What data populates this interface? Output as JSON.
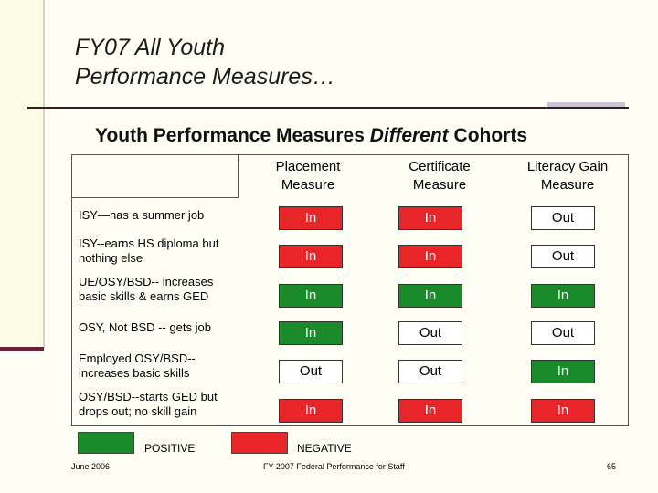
{
  "title": {
    "line1": "FY07 All Youth",
    "line2": "Performance Measures…"
  },
  "subtitle": {
    "before": "Youth Performance Measures ",
    "emphasis": "Different",
    "after": " Cohorts"
  },
  "columns": [
    {
      "line1": "Placement",
      "line2": "Measure"
    },
    {
      "line1": "Certificate",
      "line2": "Measure"
    },
    {
      "line1": "Literacy Gain",
      "line2": "Measure"
    }
  ],
  "rows": [
    {
      "label": "ISY—has a summer job",
      "cells": [
        {
          "text": "In",
          "status": "negative"
        },
        {
          "text": "In",
          "status": "negative"
        },
        {
          "text": "Out",
          "status": "none"
        }
      ]
    },
    {
      "label": "ISY--earns HS diploma but nothing else",
      "cells": [
        {
          "text": "In",
          "status": "negative"
        },
        {
          "text": "In",
          "status": "negative"
        },
        {
          "text": "Out",
          "status": "none"
        }
      ]
    },
    {
      "label": "UE/OSY/BSD-- increases basic skills & earns GED",
      "cells": [
        {
          "text": "In",
          "status": "positive"
        },
        {
          "text": "In",
          "status": "positive"
        },
        {
          "text": "In",
          "status": "positive"
        }
      ]
    },
    {
      "label": "OSY, Not BSD -- gets job",
      "cells": [
        {
          "text": "In",
          "status": "positive"
        },
        {
          "text": "Out",
          "status": "none"
        },
        {
          "text": "Out",
          "status": "none"
        }
      ]
    },
    {
      "label": "Employed OSY/BSD--increases basic skills",
      "cells": [
        {
          "text": "Out",
          "status": "none"
        },
        {
          "text": "Out",
          "status": "none"
        },
        {
          "text": "In",
          "status": "positive"
        }
      ]
    },
    {
      "label": "OSY/BSD--starts GED but drops out; no skill gain",
      "cells": [
        {
          "text": "In",
          "status": "negative"
        },
        {
          "text": "In",
          "status": "negative"
        },
        {
          "text": "In",
          "status": "negative"
        }
      ]
    }
  ],
  "legend": {
    "positive_label": "POSITIVE",
    "negative_label": "NEGATIVE"
  },
  "colors": {
    "positive": "#1a8a2a",
    "negative": "#e8262a",
    "none": "#ffffff"
  },
  "footer": {
    "date": "June 2006",
    "center": "FY 2007 Federal Performance for Staff",
    "page": "65"
  }
}
